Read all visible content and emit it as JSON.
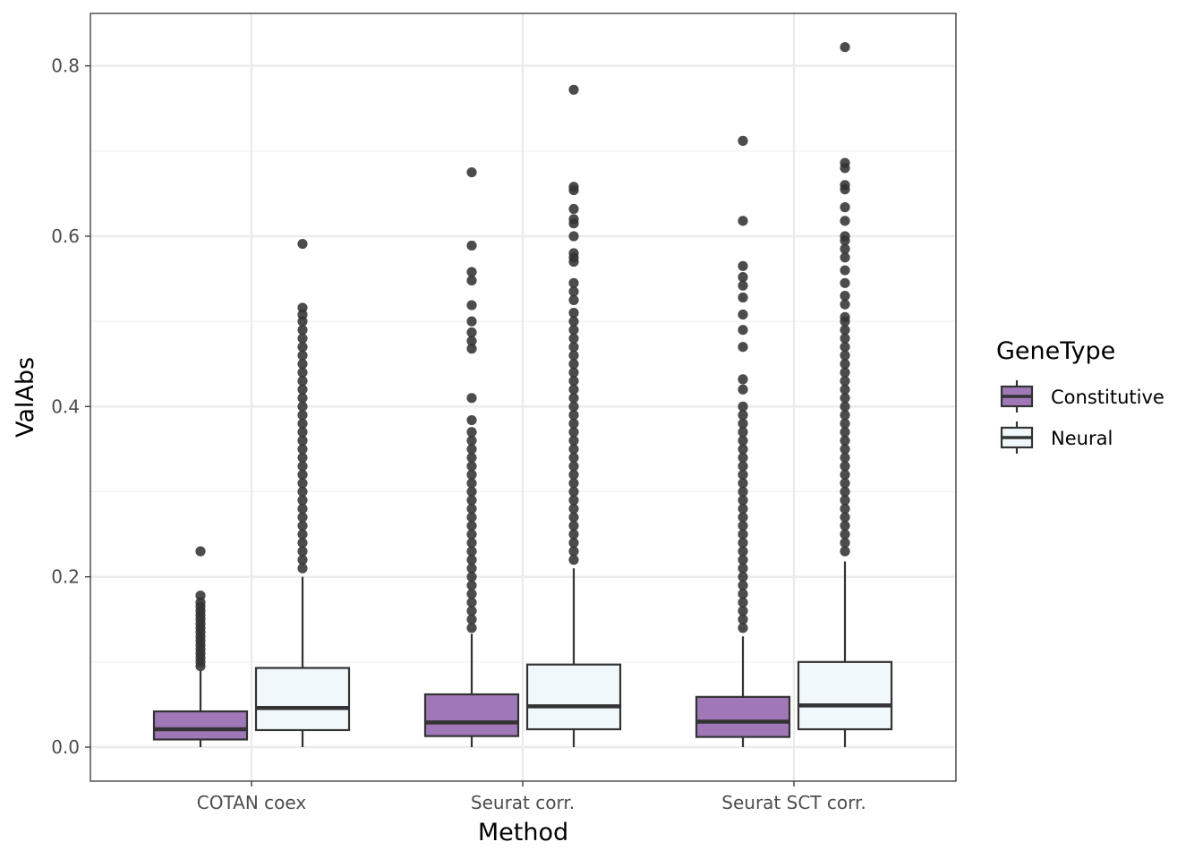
{
  "chart_data": {
    "type": "boxplot",
    "xlabel": "Method",
    "ylabel": "ValAbs",
    "categories": [
      "COTAN coex",
      "Seurat corr.",
      "Seurat SCT corr."
    ],
    "ylim": [
      -0.04,
      0.86
    ],
    "yticks": [
      0.0,
      0.2,
      0.4,
      0.6,
      0.8
    ],
    "ytick_labels": [
      "0.0",
      "0.2",
      "0.4",
      "0.6",
      "0.8"
    ],
    "grid": true,
    "legend": {
      "title": "GeneType",
      "position": "right",
      "entries": [
        {
          "label": "Constitutive",
          "color": "#a078b8"
        },
        {
          "label": "Neural",
          "color": "#f0f8fb"
        }
      ]
    },
    "series": [
      {
        "name": "Constitutive",
        "color": "#a078b8",
        "boxes": [
          {
            "category": "COTAN coex",
            "whisker_low": 0.0,
            "q1": 0.009,
            "median": 0.021,
            "q3": 0.042,
            "whisker_high": 0.09,
            "outliers": [
              0.23,
              0.178,
              0.17,
              0.165,
              0.16,
              0.155,
              0.15,
              0.145,
              0.14,
              0.135,
              0.13,
              0.125,
              0.12,
              0.115,
              0.11,
              0.105,
              0.1,
              0.095
            ]
          },
          {
            "category": "Seurat corr.",
            "whisker_low": 0.0,
            "q1": 0.013,
            "median": 0.029,
            "q3": 0.062,
            "whisker_high": 0.133,
            "outliers": [
              0.675,
              0.589,
              0.558,
              0.548,
              0.519,
              0.5,
              0.487,
              0.477,
              0.468,
              0.41,
              0.384,
              0.37,
              0.36,
              0.35,
              0.34,
              0.33,
              0.32,
              0.31,
              0.3,
              0.29,
              0.28,
              0.27,
              0.26,
              0.25,
              0.24,
              0.23,
              0.22,
              0.21,
              0.2,
              0.19,
              0.18,
              0.17,
              0.16,
              0.15,
              0.14
            ]
          },
          {
            "category": "Seurat SCT corr.",
            "whisker_low": 0.0,
            "q1": 0.012,
            "median": 0.03,
            "q3": 0.059,
            "whisker_high": 0.13,
            "outliers": [
              0.712,
              0.618,
              0.565,
              0.552,
              0.542,
              0.528,
              0.508,
              0.49,
              0.47,
              0.432,
              0.42,
              0.4,
              0.39,
              0.38,
              0.37,
              0.36,
              0.35,
              0.34,
              0.33,
              0.32,
              0.31,
              0.3,
              0.29,
              0.28,
              0.27,
              0.26,
              0.25,
              0.24,
              0.23,
              0.22,
              0.21,
              0.2,
              0.19,
              0.18,
              0.17,
              0.16,
              0.15,
              0.14
            ]
          }
        ]
      },
      {
        "name": "Neural",
        "color": "#f0f8fb",
        "boxes": [
          {
            "category": "COTAN coex",
            "whisker_low": 0.0,
            "q1": 0.02,
            "median": 0.046,
            "q3": 0.093,
            "whisker_high": 0.2,
            "outliers": [
              0.591,
              0.516,
              0.508,
              0.5,
              0.49,
              0.48,
              0.47,
              0.46,
              0.45,
              0.44,
              0.43,
              0.42,
              0.41,
              0.4,
              0.39,
              0.38,
              0.37,
              0.36,
              0.35,
              0.34,
              0.33,
              0.32,
              0.31,
              0.3,
              0.29,
              0.28,
              0.27,
              0.26,
              0.25,
              0.24,
              0.23,
              0.22,
              0.21
            ]
          },
          {
            "category": "Seurat corr.",
            "whisker_low": 0.0,
            "q1": 0.021,
            "median": 0.048,
            "q3": 0.097,
            "whisker_high": 0.21,
            "outliers": [
              0.772,
              0.658,
              0.654,
              0.632,
              0.62,
              0.615,
              0.6,
              0.58,
              0.575,
              0.57,
              0.545,
              0.535,
              0.525,
              0.51,
              0.5,
              0.49,
              0.48,
              0.47,
              0.46,
              0.45,
              0.44,
              0.43,
              0.42,
              0.41,
              0.4,
              0.39,
              0.38,
              0.37,
              0.36,
              0.35,
              0.34,
              0.33,
              0.32,
              0.31,
              0.3,
              0.29,
              0.28,
              0.27,
              0.26,
              0.25,
              0.24,
              0.23,
              0.22
            ]
          },
          {
            "category": "Seurat SCT corr.",
            "whisker_low": 0.0,
            "q1": 0.021,
            "median": 0.049,
            "q3": 0.1,
            "whisker_high": 0.218,
            "outliers": [
              0.822,
              0.686,
              0.68,
              0.66,
              0.655,
              0.634,
              0.618,
              0.6,
              0.595,
              0.585,
              0.575,
              0.56,
              0.545,
              0.53,
              0.52,
              0.505,
              0.5,
              0.49,
              0.48,
              0.47,
              0.46,
              0.45,
              0.44,
              0.43,
              0.42,
              0.41,
              0.4,
              0.39,
              0.38,
              0.37,
              0.36,
              0.35,
              0.34,
              0.33,
              0.32,
              0.31,
              0.3,
              0.29,
              0.28,
              0.27,
              0.26,
              0.25,
              0.24,
              0.23
            ]
          }
        ]
      }
    ]
  }
}
